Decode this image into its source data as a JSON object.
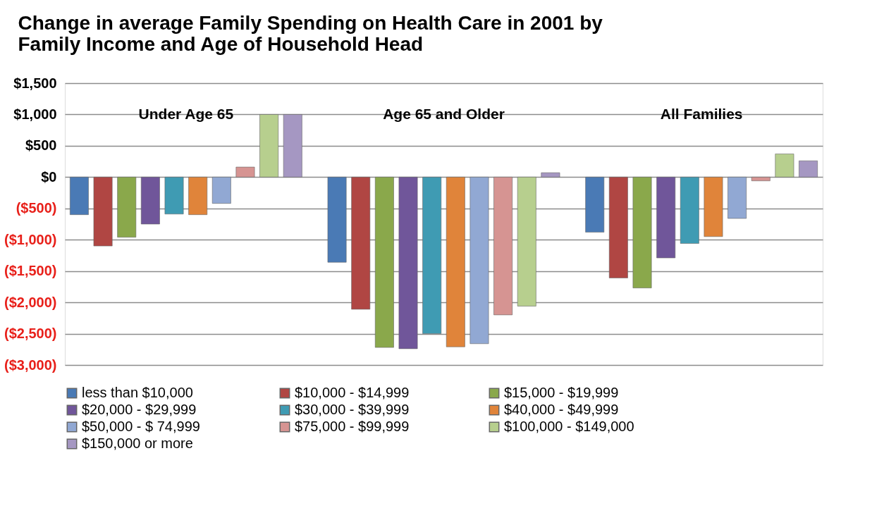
{
  "chart_data": {
    "type": "bar",
    "title": [
      "Change in average Family Spending on Health Care in 2001 by",
      "Family Income and Age of Household Head"
    ],
    "categories": [
      "Under Age 65",
      "Age 65 and Older",
      "All Families"
    ],
    "series": [
      {
        "name": "less than $10,000",
        "color": "#4a7ab5",
        "values": [
          -600,
          -1360,
          -880
        ]
      },
      {
        "name": "$10,000 - $14,999",
        "color": "#b04643",
        "values": [
          -1100,
          -2110,
          -1610
        ]
      },
      {
        "name": "$15,000 - $19,999",
        "color": "#8aa84b",
        "values": [
          -960,
          -2720,
          -1770
        ]
      },
      {
        "name": "$20,000 - $29,999",
        "color": "#70569a",
        "values": [
          -750,
          -2740,
          -1290
        ]
      },
      {
        "name": "$30,000 - $39,999",
        "color": "#3f9bb3",
        "values": [
          -590,
          -2500,
          -1060
        ]
      },
      {
        "name": "$40,000 - $49,999",
        "color": "#e0843a",
        "values": [
          -600,
          -2710,
          -950
        ]
      },
      {
        "name": "$50,000 - $ 74,999",
        "color": "#91a8d3",
        "values": [
          -420,
          -2660,
          -660
        ]
      },
      {
        "name": "$75,000 - $99,999",
        "color": "#d69492",
        "values": [
          160,
          -2200,
          -60
        ]
      },
      {
        "name": "$100,000 - $149,000",
        "color": "#b7cf8e",
        "values": [
          1000,
          -2060,
          370
        ]
      },
      {
        "name": "$150,000 or more",
        "color": "#a597c2",
        "values": [
          1000,
          70,
          260
        ]
      }
    ],
    "ylim": [
      -3000,
      1500
    ],
    "yticks": [
      {
        "value": 1500,
        "label": "$1,500"
      },
      {
        "value": 1000,
        "label": "$1,000"
      },
      {
        "value": 500,
        "label": "$500"
      },
      {
        "value": 0,
        "label": "$0"
      },
      {
        "value": -500,
        "label": "($500)"
      },
      {
        "value": -1000,
        "label": "($1,000)"
      },
      {
        "value": -1500,
        "label": "($1,500)"
      },
      {
        "value": -2000,
        "label": "($2,000)"
      },
      {
        "value": -2500,
        "label": "($2,500)"
      },
      {
        "value": -3000,
        "label": "($3,000)"
      }
    ],
    "grid": "y",
    "legend": "bottom"
  }
}
